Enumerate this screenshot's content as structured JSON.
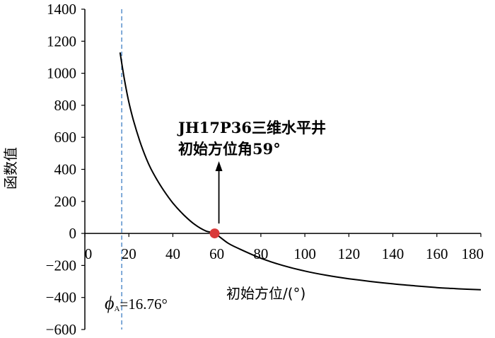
{
  "chart_data": {
    "type": "line",
    "title": "",
    "xlabel": "初始方位/(°)",
    "ylabel": "函数值",
    "xlim": [
      0,
      180
    ],
    "ylim": [
      -600,
      1400
    ],
    "x_ticks": [
      0,
      20,
      40,
      60,
      80,
      100,
      120,
      140,
      160,
      180
    ],
    "y_ticks": [
      1400,
      1200,
      1000,
      800,
      600,
      400,
      200,
      0,
      -200,
      -400,
      -600
    ],
    "x_tick_labels": [
      "0",
      "20",
      "40",
      "60",
      "80",
      "100",
      "120",
      "140",
      "160",
      "180"
    ],
    "y_tick_labels": [
      "1400",
      "1200",
      "1000",
      "800",
      "600",
      "400",
      "200",
      "0",
      "−200",
      "−400",
      "−600"
    ],
    "grid": false,
    "series": [
      {
        "color": "#000000",
        "x": [
          16,
          18,
          20,
          22,
          25,
          28,
          30,
          33,
          36,
          40,
          45,
          50,
          55,
          59,
          65,
          70,
          80,
          90,
          100,
          110,
          120,
          130,
          140,
          150,
          160,
          170,
          180
        ],
        "y": [
          1130,
          960,
          820,
          710,
          575,
          465,
          405,
          330,
          265,
          190,
          115,
          55,
          15,
          0,
          -60,
          -95,
          -155,
          -200,
          -235,
          -262,
          -283,
          -300,
          -315,
          -327,
          -338,
          -346,
          -352
        ]
      }
    ],
    "vline": {
      "x": 16.76,
      "color": "#4a86c8",
      "style": "dashed"
    },
    "marker": {
      "x": 59,
      "y": 0,
      "color": "#d93a3a"
    },
    "annotations": {
      "well_line1": "JH17P36三维水平井",
      "well_line2": "初始方位角59°",
      "phi_symbol": "ϕ",
      "phi_sub": "A",
      "phi_value": "=16.76°"
    }
  }
}
